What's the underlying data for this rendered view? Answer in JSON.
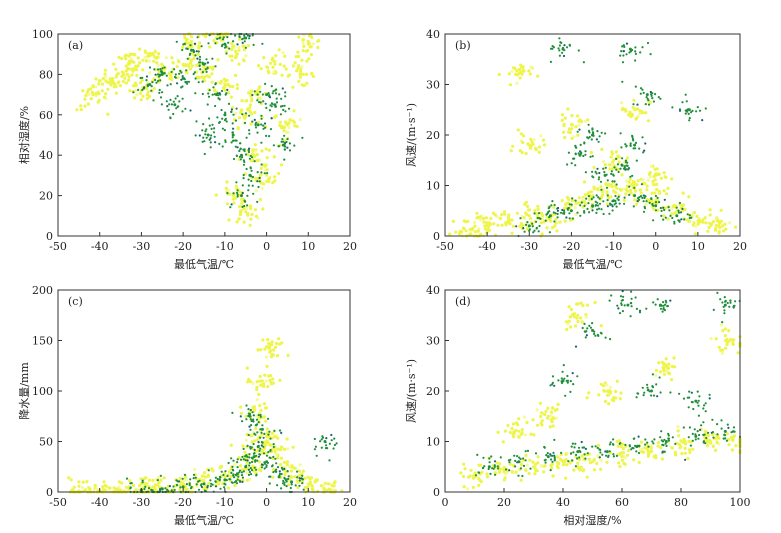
{
  "colors": {
    "yellow": "#eef54a",
    "light_yellow": "#f6fa9a",
    "green": "#1f8f3a",
    "dark": "#1d5f7a",
    "axis": "#333333"
  },
  "chart_data": [
    {
      "type": "scatter",
      "panel": "(a)",
      "xlabel": "最低气温/℃",
      "ylabel": "相对湿度/%",
      "xlim": [
        -50,
        20
      ],
      "ylim": [
        0,
        100
      ],
      "xticks": [
        -50,
        -40,
        -30,
        -20,
        -10,
        0,
        10,
        20
      ],
      "yticks": [
        0,
        20,
        40,
        60,
        80,
        100
      ],
      "clusters": [
        {
          "series": "yellow",
          "points": [
            [
              -38,
              76
            ],
            [
              -34,
              78
            ],
            [
              -30,
              72
            ],
            [
              -25,
              80
            ],
            [
              -20,
              85
            ],
            [
              -15,
              82
            ],
            [
              -10,
              75
            ],
            [
              -5,
              60
            ],
            [
              -3,
              40
            ],
            [
              0,
              30
            ],
            [
              5,
              55
            ],
            [
              8,
              80
            ],
            [
              -42,
              68
            ],
            [
              -28,
              90
            ],
            [
              -18,
              95
            ],
            [
              -12,
              98
            ],
            [
              -7,
              90
            ],
            [
              -2,
              70
            ],
            [
              2,
              85
            ],
            [
              10,
              95
            ],
            [
              -8,
              20
            ],
            [
              -5,
              12
            ],
            [
              -33,
              85
            ]
          ]
        },
        {
          "series": "green",
          "points": [
            [
              -25,
              80
            ],
            [
              -20,
              78
            ],
            [
              -15,
              85
            ],
            [
              -12,
              70
            ],
            [
              -10,
              60
            ],
            [
              -8,
              50
            ],
            [
              -6,
              40
            ],
            [
              -4,
              30
            ],
            [
              -2,
              55
            ],
            [
              0,
              70
            ],
            [
              2,
              65
            ],
            [
              -18,
              92
            ],
            [
              -10,
              95
            ],
            [
              -5,
              98
            ],
            [
              -28,
              75
            ],
            [
              -22,
              65
            ],
            [
              -6,
              20
            ],
            [
              4,
              45
            ],
            [
              -14,
              50
            ]
          ]
        }
      ]
    },
    {
      "type": "scatter",
      "panel": "(b)",
      "xlabel": "最低气温/℃",
      "ylabel": "风速/(m·s⁻¹)",
      "xlim": [
        -50,
        20
      ],
      "ylim": [
        0,
        40
      ],
      "xticks": [
        -50,
        -40,
        -30,
        -20,
        -10,
        0,
        10,
        20
      ],
      "yticks": [
        0,
        10,
        20,
        30,
        40
      ],
      "clusters": [
        {
          "series": "yellow",
          "points": [
            [
              -45,
              1
            ],
            [
              -40,
              2
            ],
            [
              -35,
              3
            ],
            [
              -30,
              4
            ],
            [
              -25,
              3
            ],
            [
              -20,
              6
            ],
            [
              -15,
              8
            ],
            [
              -10,
              9
            ],
            [
              -5,
              10
            ],
            [
              0,
              7
            ],
            [
              5,
              5
            ],
            [
              10,
              3
            ],
            [
              15,
              2
            ],
            [
              -30,
              18
            ],
            [
              -20,
              22
            ],
            [
              -10,
              15
            ],
            [
              -5,
              25
            ],
            [
              0,
              12
            ],
            [
              -33,
              32
            ]
          ]
        },
        {
          "series": "green",
          "points": [
            [
              -30,
              2
            ],
            [
              -25,
              4
            ],
            [
              -20,
              5
            ],
            [
              -15,
              6
            ],
            [
              -10,
              7
            ],
            [
              -5,
              8
            ],
            [
              0,
              6
            ],
            [
              5,
              4
            ],
            [
              -12,
              12
            ],
            [
              -8,
              14
            ],
            [
              -15,
              20
            ],
            [
              -5,
              18
            ],
            [
              -22,
              37
            ],
            [
              -2,
              28
            ],
            [
              -18,
              16
            ],
            [
              -6,
              37
            ],
            [
              8,
              25
            ]
          ]
        }
      ]
    },
    {
      "type": "scatter",
      "panel": "(c)",
      "xlabel": "最低气温/℃",
      "ylabel": "降水量/mm",
      "xlim": [
        -50,
        20
      ],
      "ylim": [
        0,
        200
      ],
      "xticks": [
        -50,
        -40,
        -30,
        -20,
        -10,
        0,
        10,
        20
      ],
      "yticks": [
        0,
        50,
        100,
        150,
        200
      ],
      "clusters": [
        {
          "series": "yellow",
          "points": [
            [
              -45,
              1
            ],
            [
              -40,
              1
            ],
            [
              -35,
              2
            ],
            [
              -30,
              3
            ],
            [
              -25,
              4
            ],
            [
              -20,
              6
            ],
            [
              -15,
              10
            ],
            [
              -10,
              15
            ],
            [
              -5,
              25
            ],
            [
              -2,
              45
            ],
            [
              0,
              55
            ],
            [
              2,
              40
            ],
            [
              5,
              20
            ],
            [
              10,
              8
            ],
            [
              15,
              3
            ],
            [
              -3,
              80
            ],
            [
              1,
              140
            ],
            [
              -1,
              110
            ]
          ]
        },
        {
          "series": "green",
          "points": [
            [
              -30,
              2
            ],
            [
              -25,
              3
            ],
            [
              -20,
              5
            ],
            [
              -15,
              8
            ],
            [
              -10,
              12
            ],
            [
              -7,
              18
            ],
            [
              -5,
              25
            ],
            [
              -3,
              35
            ],
            [
              -2,
              45
            ],
            [
              0,
              30
            ],
            [
              3,
              15
            ],
            [
              6,
              10
            ],
            [
              -4,
              75
            ],
            [
              -1,
              62
            ],
            [
              14,
              50
            ]
          ]
        }
      ]
    },
    {
      "type": "scatter",
      "panel": "(d)",
      "xlabel": "相对湿度/%",
      "ylabel": "风速/(m·s⁻¹)",
      "xlim": [
        0,
        100
      ],
      "ylim": [
        0,
        40
      ],
      "xticks": [
        0,
        20,
        40,
        60,
        80,
        100
      ],
      "yticks": [
        0,
        10,
        20,
        30,
        40
      ],
      "clusters": [
        {
          "series": "yellow",
          "points": [
            [
              10,
              3
            ],
            [
              20,
              4
            ],
            [
              30,
              5
            ],
            [
              40,
              6
            ],
            [
              50,
              6
            ],
            [
              60,
              7
            ],
            [
              70,
              8
            ],
            [
              80,
              9
            ],
            [
              90,
              10
            ],
            [
              100,
              10
            ],
            [
              35,
              15
            ],
            [
              55,
              20
            ],
            [
              75,
              25
            ],
            [
              95,
              30
            ],
            [
              45,
              35
            ],
            [
              25,
              12
            ]
          ]
        },
        {
          "series": "green",
          "points": [
            [
              15,
              5
            ],
            [
              25,
              6
            ],
            [
              35,
              7
            ],
            [
              45,
              8
            ],
            [
              55,
              8
            ],
            [
              65,
              9
            ],
            [
              75,
              10
            ],
            [
              85,
              11
            ],
            [
              95,
              12
            ],
            [
              50,
              32
            ],
            [
              62,
              37
            ],
            [
              73,
              37
            ],
            [
              95,
              37
            ],
            [
              40,
              22
            ],
            [
              70,
              20
            ],
            [
              85,
              18
            ]
          ]
        }
      ]
    }
  ]
}
